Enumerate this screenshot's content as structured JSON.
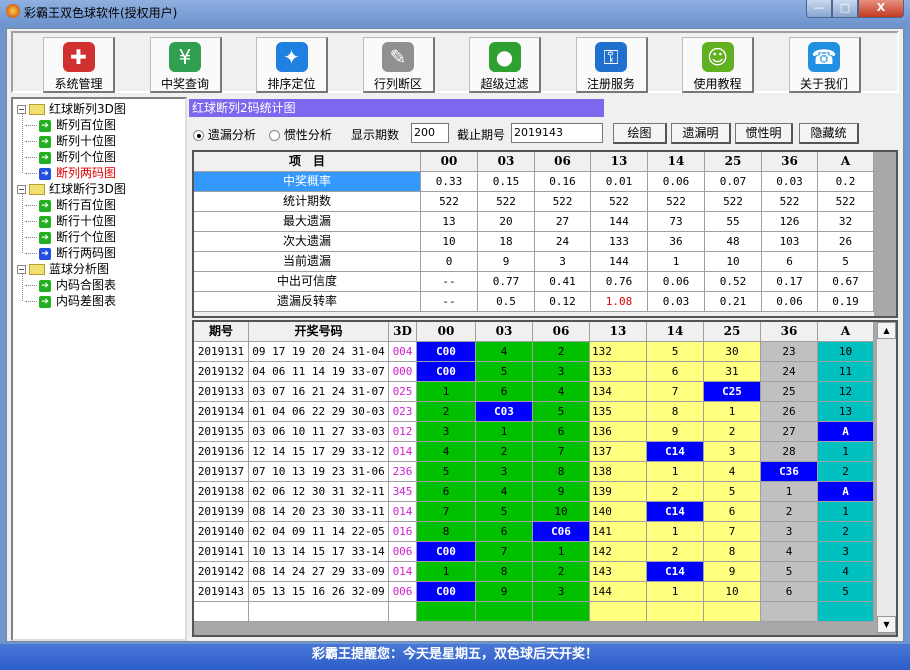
{
  "window": {
    "title": "彩霸王双色球软件(授权用户)",
    "min": "—",
    "max": "□",
    "close": "X"
  },
  "toolbar": [
    {
      "label": "系统管理",
      "icon": "toolbox-icon",
      "color": "#d03030",
      "glyph": "✚"
    },
    {
      "label": "中奖查询",
      "icon": "search-document-icon",
      "color": "#30a050",
      "glyph": "¥"
    },
    {
      "label": "排序定位",
      "icon": "compass-icon",
      "color": "#2080e0",
      "glyph": "✦"
    },
    {
      "label": "行列断区",
      "icon": "grid-pencil-icon",
      "color": "#909090",
      "glyph": "✎"
    },
    {
      "label": "超级过滤",
      "icon": "filter-box-icon",
      "color": "#30a030",
      "glyph": "●"
    },
    {
      "label": "注册服务",
      "icon": "key-icon",
      "color": "#2070d0",
      "glyph": "⚿"
    },
    {
      "label": "使用教程",
      "icon": "user-folder-icon",
      "color": "#60b020",
      "glyph": "☺"
    },
    {
      "label": "关于我们",
      "icon": "phone-icon",
      "color": "#2090e0",
      "glyph": "☎"
    }
  ],
  "tree": [
    {
      "label": "红球断列3D图",
      "children": [
        {
          "label": "断列百位图"
        },
        {
          "label": "断列十位图"
        },
        {
          "label": "断列个位图"
        },
        {
          "label": "断列两码图",
          "selected": true
        }
      ]
    },
    {
      "label": "红球断行3D图",
      "children": [
        {
          "label": "断行百位图"
        },
        {
          "label": "断行十位图"
        },
        {
          "label": "断行个位图"
        },
        {
          "label": "断行两码图",
          "blue": true
        }
      ]
    },
    {
      "label": "蓝球分析图",
      "children": [
        {
          "label": "内码合图表"
        },
        {
          "label": "内码差图表"
        }
      ]
    }
  ],
  "panel": {
    "title": "红球断列2码统计图",
    "radio1": "遗漏分析",
    "radio2": "惯性分析",
    "radio_selected": "遗漏分析",
    "periods_label": "显示期数",
    "periods_value": "200",
    "end_label": "截止期号",
    "end_value": "2019143",
    "buttons": [
      "绘图",
      "遗漏明",
      "惯性明",
      "隐藏统"
    ]
  },
  "stats": {
    "headers": [
      "项　目",
      "00",
      "03",
      "06",
      "13",
      "14",
      "25",
      "36",
      "A"
    ],
    "rows": [
      {
        "label": "中奖概率",
        "values": [
          "0.33",
          "0.15",
          "0.16",
          "0.01",
          "0.06",
          "0.07",
          "0.03",
          "0.2"
        ]
      },
      {
        "label": "统计期数",
        "values": [
          "522",
          "522",
          "522",
          "522",
          "522",
          "522",
          "522",
          "522"
        ]
      },
      {
        "label": "最大遗漏",
        "values": [
          "13",
          "20",
          "27",
          "144",
          "73",
          "55",
          "126",
          "32"
        ]
      },
      {
        "label": "次大遗漏",
        "values": [
          "10",
          "18",
          "24",
          "133",
          "36",
          "48",
          "103",
          "26"
        ]
      },
      {
        "label": "当前遗漏",
        "values": [
          "0",
          "9",
          "3",
          "144",
          "1",
          "10",
          "6",
          "5"
        ]
      },
      {
        "label": "中出可信度",
        "values": [
          "--",
          "0.77",
          "0.41",
          "0.76",
          "0.06",
          "0.52",
          "0.17",
          "0.67"
        ]
      },
      {
        "label": "遗漏反转率",
        "values": [
          "--",
          "0.5",
          "0.12",
          "1.08",
          "0.03",
          "0.21",
          "0.06",
          "0.19"
        ]
      }
    ],
    "highlight_color": "#e00000"
  },
  "draws": {
    "headers": [
      "期号",
      "开奖号码",
      "3D",
      "00",
      "03",
      "06",
      "13",
      "14",
      "25",
      "36",
      "A"
    ],
    "rows": [
      [
        "2019131",
        "09 17 19 20 24 31-04",
        "004",
        "C00",
        "4",
        "2",
        "132",
        "5",
        "30",
        "23",
        "10"
      ],
      [
        "2019132",
        "04 06 11 14 19 33-07",
        "000",
        "C00",
        "5",
        "3",
        "133",
        "6",
        "31",
        "24",
        "11"
      ],
      [
        "2019133",
        "03 07 16 21 24 31-07",
        "025",
        "1",
        "6",
        "4",
        "134",
        "7",
        "C25",
        "25",
        "12"
      ],
      [
        "2019134",
        "01 04 06 22 29 30-03",
        "023",
        "2",
        "C03",
        "5",
        "135",
        "8",
        "1",
        "26",
        "13"
      ],
      [
        "2019135",
        "03 06 10 11 27 33-03",
        "012",
        "3",
        "1",
        "6",
        "136",
        "9",
        "2",
        "27",
        "A"
      ],
      [
        "2019136",
        "12 14 15 17 29 33-12",
        "014",
        "4",
        "2",
        "7",
        "137",
        "C14",
        "3",
        "28",
        "1"
      ],
      [
        "2019137",
        "07 10 13 19 23 31-06",
        "236",
        "5",
        "3",
        "8",
        "138",
        "1",
        "4",
        "C36",
        "2"
      ],
      [
        "2019138",
        "02 06 12 30 31 32-11",
        "345",
        "6",
        "4",
        "9",
        "139",
        "2",
        "5",
        "1",
        "A"
      ],
      [
        "2019139",
        "08 14 20 23 30 33-11",
        "014",
        "7",
        "5",
        "10",
        "140",
        "C14",
        "6",
        "2",
        "1"
      ],
      [
        "2019140",
        "02 04 09 11 14 22-05",
        "016",
        "8",
        "6",
        "C06",
        "141",
        "1",
        "7",
        "3",
        "2"
      ],
      [
        "2019141",
        "10 13 14 15 17 33-14",
        "006",
        "C00",
        "7",
        "1",
        "142",
        "2",
        "8",
        "4",
        "3"
      ],
      [
        "2019142",
        "08 14 24 27 29 33-09",
        "014",
        "1",
        "8",
        "2",
        "143",
        "C14",
        "9",
        "5",
        "4"
      ],
      [
        "2019143",
        "05 13 15 16 26 32-09",
        "006",
        "C00",
        "9",
        "3",
        "144",
        "1",
        "10",
        "6",
        "5"
      ]
    ],
    "column_colors": {
      "00": "#00c000",
      "03": "#00c000",
      "06": "#00c000",
      "13": "#ffff80",
      "14": "#ffff80",
      "25": "#ffff80",
      "36": "#c0c0c0",
      "A": "#00c0c0"
    },
    "hit_color": "#0000ff"
  },
  "status": "彩霸王提醒您：今天是星期五，双色球后天开奖！"
}
